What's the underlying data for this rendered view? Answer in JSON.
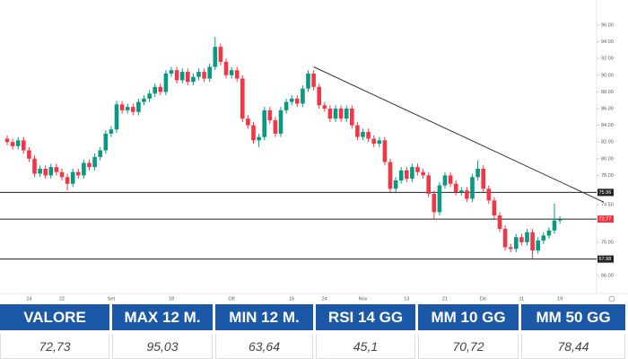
{
  "chart_data": {
    "type": "candlestick",
    "categories": [
      null,
      null,
      null,
      null,
      "14",
      null,
      null,
      null,
      null,
      null,
      "22",
      null,
      null,
      null,
      null,
      null,
      null,
      null,
      null,
      "Set",
      null,
      null,
      null,
      null,
      null,
      null,
      null,
      null,
      null,
      null,
      "18",
      null,
      null,
      null,
      null,
      null,
      null,
      null,
      null,
      null,
      null,
      "Ott",
      null,
      null,
      null,
      null,
      null,
      null,
      null,
      null,
      null,
      null,
      "16",
      null,
      null,
      null,
      null,
      null,
      "24",
      null,
      null,
      null,
      null,
      null,
      null,
      "Nov",
      null,
      null,
      null,
      null,
      null,
      null,
      null,
      "13",
      null,
      null,
      null,
      null,
      null,
      null,
      "21",
      null,
      null,
      null,
      null,
      null,
      null,
      "Dic",
      null,
      null,
      null,
      null,
      null,
      null,
      "11",
      null,
      null,
      null,
      null,
      null,
      null,
      "19"
    ],
    "open": [
      82.4,
      82.0,
      81.5,
      82.2,
      81.0,
      80.0,
      78.2,
      78.8,
      78.0,
      79.0,
      78.4,
      77.8,
      77.0,
      78.4,
      78.0,
      79.5,
      79.0,
      80.2,
      81.0,
      83.0,
      83.5,
      86.5,
      85.8,
      86.2,
      85.6,
      86.8,
      87.2,
      87.8,
      88.6,
      88.0,
      90.2,
      90.6,
      89.4,
      90.4,
      89.2,
      89.8,
      90.4,
      89.6,
      91.0,
      93.4,
      91.6,
      90.0,
      90.6,
      89.6,
      84.8,
      84.0,
      82.2,
      82.6,
      85.8,
      84.6,
      83.0,
      85.8,
      86.8,
      87.2,
      86.6,
      88.4,
      90.2,
      88.6,
      86.4,
      86.0,
      84.8,
      86.0,
      84.8,
      86.0,
      84.0,
      82.6,
      83.2,
      82.4,
      81.8,
      82.2,
      79.6,
      76.4,
      77.4,
      78.6,
      77.6,
      79.0,
      78.4,
      78.0,
      75.8,
      73.6,
      76.8,
      78.0,
      77.0,
      76.0,
      76.2,
      75.2,
      77.8,
      78.8,
      76.4,
      75.0,
      73.2,
      71.6,
      69.4,
      69.2,
      70.6,
      70.0,
      71.2,
      69.0,
      70.2,
      70.8,
      71.4,
      72.6
    ],
    "high": [
      82.8,
      82.4,
      82.6,
      82.6,
      81.4,
      80.4,
      79.2,
      79.2,
      79.4,
      79.4,
      78.8,
      78.2,
      78.8,
      78.8,
      79.9,
      79.9,
      80.6,
      81.4,
      83.4,
      83.9,
      86.9,
      86.9,
      86.6,
      86.6,
      87.2,
      87.6,
      88.2,
      89.0,
      89.0,
      90.6,
      91.0,
      91.0,
      90.8,
      90.8,
      90.2,
      90.8,
      90.8,
      91.4,
      94.6,
      93.8,
      92.0,
      91.0,
      91.0,
      90.0,
      85.2,
      84.4,
      83.0,
      86.2,
      86.2,
      85.0,
      86.2,
      87.2,
      87.6,
      87.6,
      88.8,
      90.6,
      90.6,
      89.0,
      86.8,
      86.4,
      86.4,
      86.4,
      86.4,
      86.4,
      84.4,
      83.6,
      83.6,
      82.8,
      82.6,
      82.6,
      80.0,
      77.8,
      79.0,
      79.0,
      79.4,
      79.4,
      78.8,
      78.4,
      76.2,
      77.2,
      78.4,
      78.4,
      77.4,
      76.6,
      76.6,
      78.2,
      79.8,
      79.2,
      76.8,
      75.4,
      73.6,
      72.0,
      69.8,
      71.0,
      71.0,
      71.6,
      71.6,
      70.6,
      71.2,
      71.8,
      74.6,
      73.1
    ],
    "low": [
      81.6,
      81.1,
      81.1,
      80.6,
      79.6,
      77.8,
      77.8,
      77.6,
      77.6,
      78.0,
      77.4,
      76.2,
      76.6,
      77.6,
      77.6,
      78.6,
      78.6,
      79.8,
      80.6,
      82.6,
      83.1,
      85.4,
      85.4,
      85.2,
      85.2,
      86.4,
      86.8,
      87.4,
      87.6,
      87.6,
      89.8,
      89.0,
      89.0,
      88.8,
      88.8,
      89.4,
      89.2,
      89.2,
      90.6,
      91.2,
      89.6,
      89.6,
      89.2,
      84.4,
      83.6,
      81.8,
      81.4,
      82.2,
      84.2,
      82.6,
      82.6,
      85.4,
      86.4,
      86.2,
      86.2,
      88.0,
      88.2,
      86.0,
      85.6,
      84.4,
      84.4,
      84.4,
      84.4,
      83.6,
      82.2,
      82.2,
      82.0,
      81.4,
      81.4,
      79.2,
      76.0,
      76.0,
      77.0,
      77.2,
      77.2,
      78.0,
      77.6,
      75.4,
      72.8,
      73.2,
      76.4,
      76.6,
      75.6,
      75.6,
      74.8,
      74.8,
      77.4,
      76.0,
      74.6,
      72.8,
      71.2,
      69.0,
      68.8,
      68.8,
      69.6,
      69.6,
      68.0,
      68.6,
      69.8,
      70.4,
      71.0,
      72.2
    ],
    "close": [
      82.0,
      81.5,
      82.2,
      81.0,
      80.0,
      78.2,
      78.8,
      78.0,
      79.0,
      78.4,
      77.8,
      77.0,
      78.4,
      78.0,
      79.5,
      79.0,
      80.2,
      81.0,
      83.0,
      83.5,
      86.5,
      85.8,
      86.2,
      85.6,
      86.8,
      87.2,
      87.8,
      88.6,
      88.0,
      90.2,
      90.6,
      89.4,
      90.4,
      89.2,
      89.8,
      90.4,
      89.6,
      91.0,
      93.4,
      91.6,
      90.0,
      90.6,
      89.6,
      84.8,
      84.0,
      82.2,
      82.6,
      85.8,
      84.6,
      83.0,
      85.8,
      86.8,
      87.2,
      86.6,
      88.4,
      90.2,
      88.6,
      86.4,
      86.0,
      84.8,
      86.0,
      84.8,
      86.0,
      84.0,
      82.6,
      83.2,
      82.4,
      81.8,
      82.2,
      79.6,
      76.4,
      77.4,
      78.6,
      77.6,
      79.0,
      78.4,
      78.0,
      75.8,
      73.6,
      76.8,
      78.0,
      77.0,
      76.0,
      76.2,
      75.2,
      77.8,
      78.8,
      76.4,
      75.0,
      73.2,
      71.6,
      69.4,
      69.2,
      70.6,
      70.0,
      71.2,
      69.0,
      70.2,
      70.8,
      71.4,
      72.6,
      72.73
    ],
    "up_color": "#089981",
    "down_color": "#f23645",
    "ylim": [
      64.5,
      96.5
    ],
    "yticks": [
      {
        "value": 96,
        "label": "96.00"
      },
      {
        "value": 94,
        "label": "94.00"
      },
      {
        "value": 92,
        "label": "92.00"
      },
      {
        "value": 90,
        "label": "90.00"
      },
      {
        "value": 88,
        "label": "88.00"
      },
      {
        "value": 86,
        "label": "86.00"
      },
      {
        "value": 84,
        "label": "84.00"
      },
      {
        "value": 82,
        "label": "82.00"
      },
      {
        "value": 80,
        "label": "80.00"
      },
      {
        "value": 78,
        "label": "78.00"
      },
      {
        "value": 74.5,
        "label": "74.50"
      },
      {
        "value": 70,
        "label": "70.00"
      },
      {
        "value": 66,
        "label": "66.00"
      }
    ],
    "levels": [
      75.96,
      72.77,
      67.98
    ],
    "trendline": {
      "x": [
        56,
        109
      ],
      "y": [
        91,
        74.8
      ]
    }
  },
  "table": {
    "headers": [
      "VALORE",
      "MAX 12 M.",
      "MIN 12 M.",
      "RSI 14 GG",
      "MM 10 GG",
      "MM 50 GG"
    ],
    "values": [
      "72,73",
      "95,03",
      "63,64",
      "45,1",
      "70,72",
      "78,44"
    ]
  }
}
